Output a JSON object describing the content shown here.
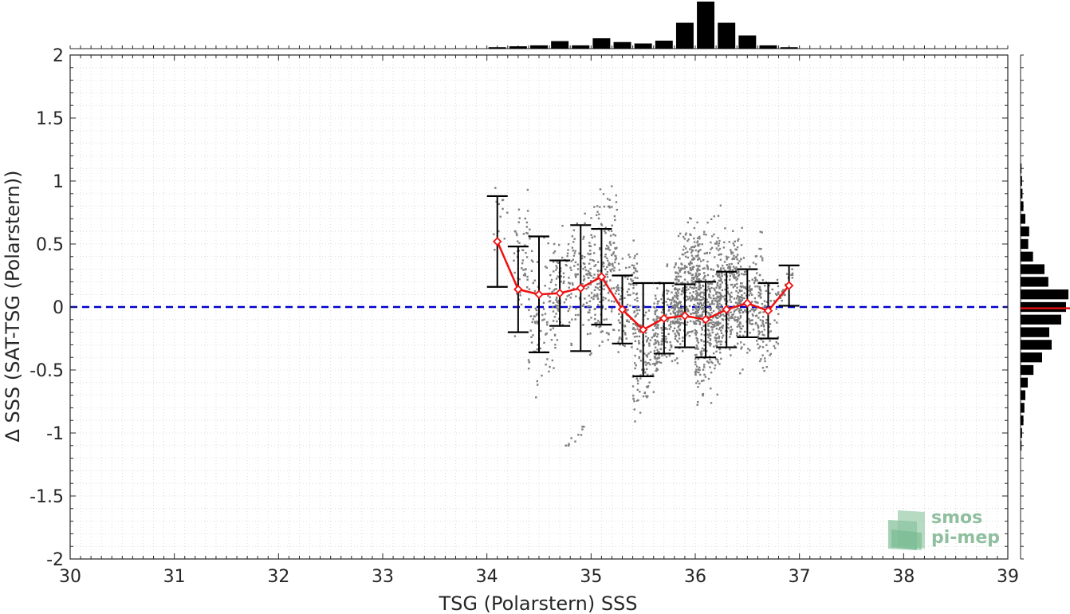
{
  "chart_data": {
    "type": "scatter",
    "xlabel": "TSG (Polarstern) SSS",
    "ylabel": "Δ SSS (SAT-TSG (Polarstern))",
    "xlim": [
      30,
      39
    ],
    "ylim": [
      -2,
      2
    ],
    "x_ticks": [
      "30",
      "31",
      "32",
      "33",
      "34",
      "35",
      "36",
      "37",
      "38",
      "39"
    ],
    "y_ticks": [
      "-2",
      "-1.5",
      "-1",
      "-0.5",
      "0",
      "0.5",
      "1",
      "1.5",
      "2"
    ],
    "grid": "minor dotted",
    "reference_line": {
      "y": 0,
      "style": "dashed",
      "color": "#0000cc"
    },
    "scatter_color": "#808080",
    "binned_mean": {
      "color": "#ee1111",
      "marker": "diamond",
      "x": [
        34.1,
        34.3,
        34.5,
        34.7,
        34.9,
        35.1,
        35.3,
        35.5,
        35.7,
        35.9,
        36.1,
        36.3,
        36.5,
        36.7,
        36.9
      ],
      "mean": [
        0.52,
        0.14,
        0.1,
        0.11,
        0.15,
        0.24,
        -0.02,
        -0.18,
        -0.09,
        -0.07,
        -0.1,
        -0.02,
        0.03,
        -0.03,
        0.17
      ],
      "std": [
        0.36,
        0.34,
        0.46,
        0.26,
        0.5,
        0.38,
        0.27,
        0.37,
        0.28,
        0.25,
        0.3,
        0.3,
        0.27,
        0.22,
        0.16
      ]
    },
    "scatter_clusters": [
      {
        "x": [
          34.05,
          34.2
        ],
        "y": [
          0.1,
          1.2
        ],
        "n": 12
      },
      {
        "x": [
          34.25,
          34.45
        ],
        "y": [
          -0.3,
          1.05
        ],
        "n": 60
      },
      {
        "x": [
          34.4,
          34.7
        ],
        "y": [
          -0.8,
          0.7
        ],
        "n": 110
      },
      {
        "x": [
          34.65,
          34.95
        ],
        "y": [
          -0.4,
          0.85
        ],
        "n": 120
      },
      {
        "x": [
          34.75,
          34.95
        ],
        "y": [
          -1.1,
          -0.95
        ],
        "n": 14
      },
      {
        "x": [
          34.95,
          35.25
        ],
        "y": [
          -0.5,
          1.05
        ],
        "n": 230
      },
      {
        "x": [
          35.25,
          35.45
        ],
        "y": [
          -0.6,
          0.6
        ],
        "n": 110
      },
      {
        "x": [
          35.4,
          35.65
        ],
        "y": [
          -1.05,
          0.25
        ],
        "n": 130
      },
      {
        "x": [
          35.6,
          35.85
        ],
        "y": [
          -0.65,
          0.4
        ],
        "n": 180
      },
      {
        "x": [
          35.8,
          36.05
        ],
        "y": [
          -0.55,
          0.85
        ],
        "n": 320
      },
      {
        "x": [
          36.0,
          36.25
        ],
        "y": [
          -0.9,
          0.85
        ],
        "n": 380
      },
      {
        "x": [
          36.2,
          36.45
        ],
        "y": [
          -0.55,
          0.75
        ],
        "n": 260
      },
      {
        "x": [
          36.4,
          36.65
        ],
        "y": [
          -0.55,
          0.6
        ],
        "n": 160
      },
      {
        "x": [
          36.6,
          36.8
        ],
        "y": [
          -0.6,
          0.35
        ],
        "n": 70
      },
      {
        "x": [
          36.8,
          36.95
        ],
        "y": [
          0.05,
          0.3
        ],
        "n": 20
      }
    ],
    "top_histogram": {
      "color": "#000000",
      "bin_centers": [
        34.1,
        34.3,
        34.5,
        34.7,
        34.9,
        35.1,
        35.3,
        35.5,
        35.7,
        35.9,
        36.1,
        36.3,
        36.5,
        36.7,
        36.9
      ],
      "relative_counts": [
        0.03,
        0.05,
        0.07,
        0.16,
        0.07,
        0.22,
        0.14,
        0.11,
        0.17,
        0.55,
        1.0,
        0.55,
        0.28,
        0.07,
        0.03
      ]
    },
    "right_histogram": {
      "color": "#000000",
      "median_line_color": "#dd1111",
      "median": -0.01,
      "bin_centers": [
        -1.1,
        -1.0,
        -0.9,
        -0.8,
        -0.7,
        -0.6,
        -0.5,
        -0.4,
        -0.3,
        -0.2,
        -0.1,
        0.0,
        0.1,
        0.2,
        0.3,
        0.4,
        0.5,
        0.6,
        0.7,
        0.8,
        0.9,
        1.0,
        1.1
      ],
      "relative_counts": [
        0.02,
        0.03,
        0.06,
        0.08,
        0.1,
        0.15,
        0.27,
        0.45,
        0.65,
        0.6,
        0.85,
        0.95,
        1.0,
        0.58,
        0.5,
        0.26,
        0.16,
        0.18,
        0.1,
        0.06,
        0.04,
        0.03,
        0.02
      ]
    }
  },
  "logo": {
    "line1": "smos",
    "line2": "pi-mep"
  }
}
